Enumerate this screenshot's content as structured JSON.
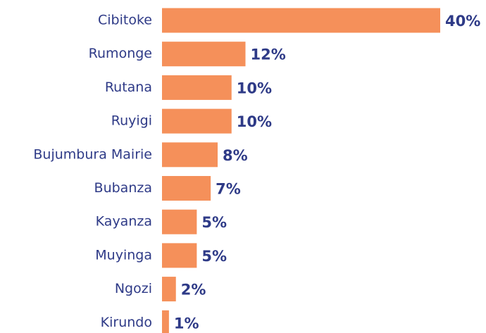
{
  "chart_data": {
    "type": "bar",
    "orientation": "horizontal",
    "categories": [
      "Cibitoke",
      "Rumonge",
      "Rutana",
      "Ruyigi",
      "Bujumbura Mairie",
      "Bubanza",
      "Kayanza",
      "Muyinga",
      "Ngozi",
      "Kirundo"
    ],
    "values": [
      40,
      12,
      10,
      10,
      8,
      7,
      5,
      5,
      2,
      1
    ],
    "value_labels": [
      "40%",
      "12%",
      "10%",
      "10%",
      "8%",
      "7%",
      "5%",
      "5%",
      "2%",
      "1%"
    ],
    "color": "#f5905a"
  }
}
